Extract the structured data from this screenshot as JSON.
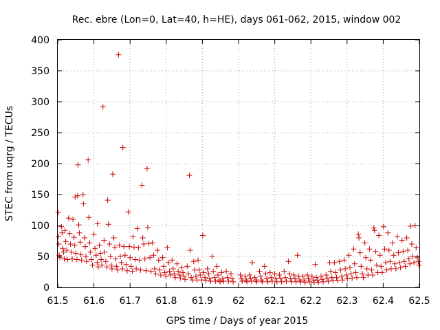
{
  "chart_data": {
    "type": "scatter",
    "title": "Rec. ebre (Lon=0, Lat=40, h=HE), days 061-062, 2015, window 002",
    "xlabel": "GPS time / Days of year 2015",
    "ylabel": "STEC from uqrg / TECUs",
    "xlim": [
      61.5,
      62.5
    ],
    "ylim": [
      0,
      400
    ],
    "xticks": [
      "61.5",
      "61.6",
      "61.7",
      "61.8",
      "61.9",
      "62",
      "62.1",
      "62.2",
      "62.3",
      "62.4",
      "62.5"
    ],
    "yticks": [
      "0",
      "50",
      "100",
      "150",
      "200",
      "250",
      "300",
      "350",
      "400"
    ],
    "grid": true,
    "legend": "none",
    "marker": "plus",
    "color": "#cc0000",
    "series": [
      {
        "points": [
          [
            61.501,
            121
          ],
          [
            61.502,
            82
          ],
          [
            61.503,
            70
          ],
          [
            61.504,
            52
          ],
          [
            61.506,
            48
          ],
          [
            61.51,
            98
          ],
          [
            61.512,
            88
          ],
          [
            61.514,
            63
          ],
          [
            61.516,
            57
          ],
          [
            61.518,
            46
          ],
          [
            61.52,
            92
          ],
          [
            61.522,
            74
          ],
          [
            61.525,
            60
          ],
          [
            61.527,
            45
          ],
          [
            61.53,
            112
          ],
          [
            61.533,
            87
          ],
          [
            61.535,
            70
          ],
          [
            61.538,
            57
          ],
          [
            61.54,
            46
          ],
          [
            61.542,
            110
          ],
          [
            61.545,
            81
          ],
          [
            61.547,
            68
          ],
          [
            61.55,
            55
          ],
          [
            61.553,
            45
          ],
          [
            61.548,
            146
          ],
          [
            61.555,
            148
          ],
          [
            61.556,
            198
          ],
          [
            61.558,
            101
          ],
          [
            61.56,
            88
          ],
          [
            61.562,
            73
          ],
          [
            61.564,
            53
          ],
          [
            61.566,
            44
          ],
          [
            61.57,
            150
          ],
          [
            61.571,
            135
          ],
          [
            61.574,
            80
          ],
          [
            61.576,
            66
          ],
          [
            61.578,
            50
          ],
          [
            61.58,
            42
          ],
          [
            61.584,
            206
          ],
          [
            61.586,
            113
          ],
          [
            61.588,
            72
          ],
          [
            61.59,
            57
          ],
          [
            61.593,
            45
          ],
          [
            61.596,
            36
          ],
          [
            61.6,
            86
          ],
          [
            61.603,
            63
          ],
          [
            61.606,
            52
          ],
          [
            61.609,
            40
          ],
          [
            61.612,
            33
          ],
          [
            61.61,
            103
          ],
          [
            61.615,
            68
          ],
          [
            61.618,
            55
          ],
          [
            61.62,
            45
          ],
          [
            61.622,
            36
          ],
          [
            61.625,
            292
          ],
          [
            61.628,
            76
          ],
          [
            61.63,
            57
          ],
          [
            61.633,
            42
          ],
          [
            61.636,
            33
          ],
          [
            61.638,
            141
          ],
          [
            61.64,
            102
          ],
          [
            61.643,
            70
          ],
          [
            61.646,
            50
          ],
          [
            61.648,
            36
          ],
          [
            61.65,
            30
          ],
          [
            61.652,
            183
          ],
          [
            61.655,
            80
          ],
          [
            61.658,
            65
          ],
          [
            61.66,
            46
          ],
          [
            61.662,
            34
          ],
          [
            61.665,
            28
          ],
          [
            61.668,
            376
          ],
          [
            61.67,
            68
          ],
          [
            61.673,
            50
          ],
          [
            61.676,
            40
          ],
          [
            61.679,
            30
          ],
          [
            61.68,
            226
          ],
          [
            61.683,
            66
          ],
          [
            61.686,
            52
          ],
          [
            61.689,
            37
          ],
          [
            61.692,
            27
          ],
          [
            61.695,
            122
          ],
          [
            61.698,
            66
          ],
          [
            61.7,
            48
          ],
          [
            61.703,
            34
          ],
          [
            61.706,
            26
          ],
          [
            61.708,
            82
          ],
          [
            61.711,
            65
          ],
          [
            61.714,
            45
          ],
          [
            61.717,
            30
          ],
          [
            61.72,
            95
          ],
          [
            61.723,
            64
          ],
          [
            61.726,
            44
          ],
          [
            61.729,
            28
          ],
          [
            61.733,
            165
          ],
          [
            61.735,
            80
          ],
          [
            61.738,
            70
          ],
          [
            61.741,
            46
          ],
          [
            61.744,
            27
          ],
          [
            61.747,
            192
          ],
          [
            61.749,
            97
          ],
          [
            61.752,
            71
          ],
          [
            61.755,
            48
          ],
          [
            61.758,
            26
          ],
          [
            61.762,
            72
          ],
          [
            61.765,
            52
          ],
          [
            61.768,
            30
          ],
          [
            61.771,
            22
          ],
          [
            61.776,
            60
          ],
          [
            61.779,
            44
          ],
          [
            61.782,
            28
          ],
          [
            61.785,
            20
          ],
          [
            61.79,
            48
          ],
          [
            61.793,
            34
          ],
          [
            61.796,
            24
          ],
          [
            61.799,
            18
          ],
          [
            61.803,
            64
          ],
          [
            61.806,
            40
          ],
          [
            61.809,
            26
          ],
          [
            61.812,
            20
          ],
          [
            61.816,
            44
          ],
          [
            61.819,
            30
          ],
          [
            61.822,
            22
          ],
          [
            61.825,
            16
          ],
          [
            61.83,
            38
          ],
          [
            61.833,
            26
          ],
          [
            61.836,
            20
          ],
          [
            61.839,
            15
          ],
          [
            61.843,
            32
          ],
          [
            61.846,
            24
          ],
          [
            61.849,
            18
          ],
          [
            61.852,
            13
          ],
          [
            61.858,
            34
          ],
          [
            61.861,
            22
          ],
          [
            61.864,
            181
          ],
          [
            61.866,
            60
          ],
          [
            61.869,
            16
          ],
          [
            61.872,
            12
          ],
          [
            61.876,
            42
          ],
          [
            61.879,
            28
          ],
          [
            61.882,
            18
          ],
          [
            61.885,
            12
          ],
          [
            61.888,
            44
          ],
          [
            61.891,
            28
          ],
          [
            61.894,
            20
          ],
          [
            61.897,
            12
          ],
          [
            61.901,
            84
          ],
          [
            61.904,
            24
          ],
          [
            61.907,
            16
          ],
          [
            61.91,
            11
          ],
          [
            61.914,
            30
          ],
          [
            61.917,
            22
          ],
          [
            61.92,
            14
          ],
          [
            61.923,
            10
          ],
          [
            61.927,
            50
          ],
          [
            61.93,
            26
          ],
          [
            61.933,
            16
          ],
          [
            61.936,
            10
          ],
          [
            61.94,
            34
          ],
          [
            61.943,
            20
          ],
          [
            61.946,
            12
          ],
          [
            61.949,
            9
          ],
          [
            61.953,
            24
          ],
          [
            61.956,
            14
          ],
          [
            61.959,
            10
          ],
          [
            61.966,
            26
          ],
          [
            61.969,
            16
          ],
          [
            61.972,
            10
          ],
          [
            61.979,
            22
          ],
          [
            61.982,
            14
          ],
          [
            61.985,
            9
          ],
          [
            62.005,
            20
          ],
          [
            62.008,
            14
          ],
          [
            62.01,
            10
          ],
          [
            62.018,
            18
          ],
          [
            62.021,
            12
          ],
          [
            62.023,
            9
          ],
          [
            62.031,
            20
          ],
          [
            62.033,
            14
          ],
          [
            62.036,
            10
          ],
          [
            62.038,
            40
          ],
          [
            62.045,
            16
          ],
          [
            62.048,
            12
          ],
          [
            62.05,
            9
          ],
          [
            62.058,
            26
          ],
          [
            62.061,
            18
          ],
          [
            62.063,
            12
          ],
          [
            62.066,
            9
          ],
          [
            62.072,
            34
          ],
          [
            62.075,
            22
          ],
          [
            62.078,
            14
          ],
          [
            62.081,
            9
          ],
          [
            62.087,
            24
          ],
          [
            62.09,
            16
          ],
          [
            62.093,
            10
          ],
          [
            62.1,
            22
          ],
          [
            62.103,
            14
          ],
          [
            62.106,
            9
          ],
          [
            62.113,
            20
          ],
          [
            62.116,
            14
          ],
          [
            62.119,
            9
          ],
          [
            62.126,
            26
          ],
          [
            62.129,
            16
          ],
          [
            62.132,
            10
          ],
          [
            62.138,
            42
          ],
          [
            62.141,
            22
          ],
          [
            62.144,
            14
          ],
          [
            62.147,
            9
          ],
          [
            62.153,
            20
          ],
          [
            62.156,
            14
          ],
          [
            62.159,
            9
          ],
          [
            62.163,
            52
          ],
          [
            62.166,
            18
          ],
          [
            62.169,
            12
          ],
          [
            62.172,
            9
          ],
          [
            62.178,
            18
          ],
          [
            62.181,
            12
          ],
          [
            62.184,
            8
          ],
          [
            62.19,
            20
          ],
          [
            62.193,
            14
          ],
          [
            62.196,
            9
          ],
          [
            62.203,
            18
          ],
          [
            62.206,
            12
          ],
          [
            62.209,
            8
          ],
          [
            62.212,
            37
          ],
          [
            62.215,
            16
          ],
          [
            62.218,
            11
          ],
          [
            62.221,
            8
          ],
          [
            62.228,
            18
          ],
          [
            62.231,
            13
          ],
          [
            62.234,
            9
          ],
          [
            62.242,
            20
          ],
          [
            62.245,
            14
          ],
          [
            62.248,
            10
          ],
          [
            62.252,
            40
          ],
          [
            62.255,
            26
          ],
          [
            62.258,
            16
          ],
          [
            62.261,
            11
          ],
          [
            62.265,
            40
          ],
          [
            62.268,
            24
          ],
          [
            62.271,
            16
          ],
          [
            62.274,
            11
          ],
          [
            62.279,
            42
          ],
          [
            62.282,
            28
          ],
          [
            62.285,
            18
          ],
          [
            62.288,
            12
          ],
          [
            62.292,
            44
          ],
          [
            62.295,
            30
          ],
          [
            62.298,
            20
          ],
          [
            62.301,
            14
          ],
          [
            62.305,
            52
          ],
          [
            62.308,
            32
          ],
          [
            62.311,
            22
          ],
          [
            62.314,
            15
          ],
          [
            62.318,
            62
          ],
          [
            62.321,
            38
          ],
          [
            62.324,
            24
          ],
          [
            62.327,
            16
          ],
          [
            62.331,
            86
          ],
          [
            62.333,
            80
          ],
          [
            62.336,
            56
          ],
          [
            62.339,
            34
          ],
          [
            62.342,
            22
          ],
          [
            62.345,
            16
          ],
          [
            62.349,
            72
          ],
          [
            62.352,
            48
          ],
          [
            62.355,
            30
          ],
          [
            62.358,
            20
          ],
          [
            62.362,
            62
          ],
          [
            62.365,
            44
          ],
          [
            62.368,
            28
          ],
          [
            62.371,
            20
          ],
          [
            62.374,
            96
          ],
          [
            62.376,
            92
          ],
          [
            62.379,
            58
          ],
          [
            62.382,
            36
          ],
          [
            62.385,
            24
          ],
          [
            62.388,
            84
          ],
          [
            62.391,
            52
          ],
          [
            62.394,
            34
          ],
          [
            62.397,
            24
          ],
          [
            62.401,
            98
          ],
          [
            62.404,
            62
          ],
          [
            62.407,
            40
          ],
          [
            62.41,
            28
          ],
          [
            62.413,
            88
          ],
          [
            62.416,
            60
          ],
          [
            62.419,
            42
          ],
          [
            62.422,
            30
          ],
          [
            62.426,
            72
          ],
          [
            62.429,
            52
          ],
          [
            62.432,
            38
          ],
          [
            62.435,
            30
          ],
          [
            62.439,
            82
          ],
          [
            62.442,
            56
          ],
          [
            62.445,
            40
          ],
          [
            62.448,
            32
          ],
          [
            62.452,
            76
          ],
          [
            62.455,
            58
          ],
          [
            62.458,
            42
          ],
          [
            62.461,
            34
          ],
          [
            62.465,
            80
          ],
          [
            62.468,
            60
          ],
          [
            62.471,
            46
          ],
          [
            62.474,
            38
          ],
          [
            62.476,
            99
          ],
          [
            62.479,
            70
          ],
          [
            62.482,
            50
          ],
          [
            62.485,
            40
          ],
          [
            62.488,
            100
          ],
          [
            62.491,
            64
          ],
          [
            62.494,
            48
          ],
          [
            62.497,
            42
          ],
          [
            62.499,
            36
          ]
        ]
      }
    ]
  }
}
